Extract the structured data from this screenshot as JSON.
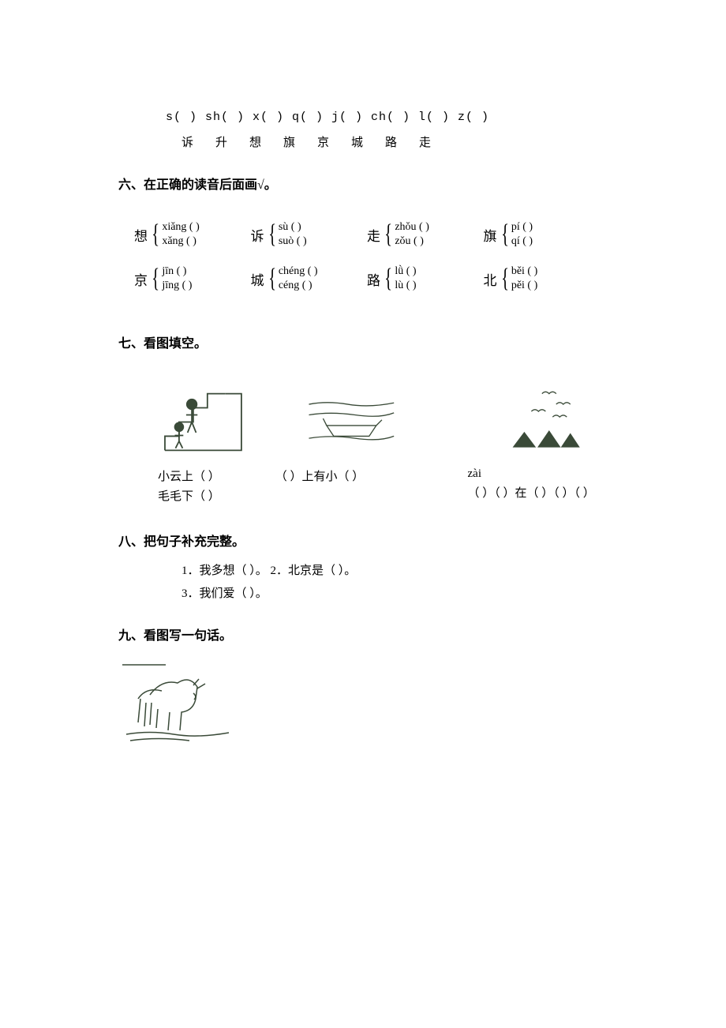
{
  "ex5": {
    "initials": [
      "s(  )",
      "sh(  )",
      "x(  )",
      "q(  )",
      "j(  )",
      "ch(  )",
      "l(  )",
      "z(  )"
    ],
    "chars": [
      "诉",
      "升",
      "想",
      "旗",
      "京",
      "城",
      "路",
      "走"
    ]
  },
  "section6": {
    "title": "六、在正确的读音后面画√。",
    "items": [
      {
        "char": "想",
        "a": "xiǎng (    )",
        "b": "xǎng (    )"
      },
      {
        "char": "诉",
        "a": "sù (    )",
        "b": "suò (    )"
      },
      {
        "char": "走",
        "a": "zhǒu (    )",
        "b": "zǒu (    )"
      },
      {
        "char": "旗",
        "a": "pí (    )",
        "b": "qí (    )"
      },
      {
        "char": "京",
        "a": "jīn (    )",
        "b": "jīng (    )"
      },
      {
        "char": "城",
        "a": "chéng (    )",
        "b": "céng (    )"
      },
      {
        "char": "路",
        "a": "lǜ (    )",
        "b": "lù (    )"
      },
      {
        "char": "北",
        "a": "běi (    )",
        "b": "pěi (    )"
      }
    ]
  },
  "section7": {
    "title": "七、看图填空。",
    "col1": {
      "l1": "小云上（  ）",
      "l2": "毛毛下（  ）"
    },
    "col2": {
      "l1": "（  ）上有小（  ）"
    },
    "col3": {
      "pinyin": "zài",
      "l2": "（  ）（  ）在（  ）（  ）（  ）"
    }
  },
  "section8": {
    "title": "八、把句子补充完整。",
    "l1": "1．我多想（            ）。  2．北京是（            ）。",
    "l2": "3．我们爱（            ）。"
  },
  "section9": {
    "title": "九、看图写一句话。"
  },
  "colors": {
    "stroke": "#3a4a38",
    "text": "#000000"
  }
}
